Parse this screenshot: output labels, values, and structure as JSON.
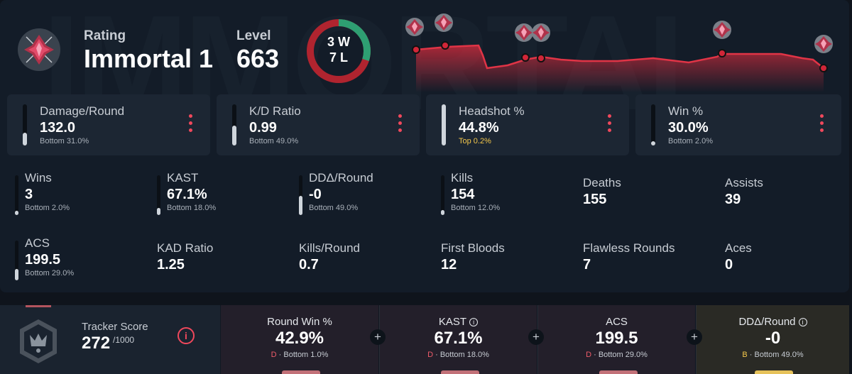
{
  "watermark": "IMMORTAL",
  "header": {
    "rating_label": "Rating",
    "rating_value": "Immortal 1",
    "level_label": "Level",
    "level_value": "663",
    "wins_text": "3 W",
    "losses_text": "7 L",
    "wins": 3,
    "losses": 7
  },
  "colors": {
    "accent_red": "#f0485c",
    "win_green": "#2e9f72",
    "loss_red": "#b0242f",
    "panel": "#131c28",
    "card": "#1c2633",
    "top_gold": "#f5c84b"
  },
  "top_cards": [
    {
      "label": "Damage/Round",
      "value": "132.0",
      "rank": "Bottom 31.0%",
      "percentile": 0.31,
      "is_top": false
    },
    {
      "label": "K/D Ratio",
      "value": "0.99",
      "rank": "Bottom 49.0%",
      "percentile": 0.49,
      "is_top": false
    },
    {
      "label": "Headshot %",
      "value": "44.8%",
      "rank": "Top 0.2%",
      "percentile": 0.998,
      "is_top": true
    },
    {
      "label": "Win %",
      "value": "30.0%",
      "rank": "Bottom 2.0%",
      "percentile": 0.02,
      "is_top": false
    }
  ],
  "stats_row1": [
    {
      "label": "Wins",
      "value": "3",
      "rank": "Bottom 2.0%",
      "percentile": 0.02
    },
    {
      "label": "KAST",
      "value": "67.1%",
      "rank": "Bottom 18.0%",
      "percentile": 0.18
    },
    {
      "label": "DDΔ/Round",
      "value": "-0",
      "rank": "Bottom 49.0%",
      "percentile": 0.49
    },
    {
      "label": "Kills",
      "value": "154",
      "rank": "Bottom 12.0%",
      "percentile": 0.12
    },
    {
      "label": "Deaths",
      "value": "155"
    },
    {
      "label": "Assists",
      "value": "39"
    }
  ],
  "stats_row2": [
    {
      "label": "ACS",
      "value": "199.5",
      "rank": "Bottom 29.0%",
      "percentile": 0.29
    },
    {
      "label": "KAD Ratio",
      "value": "1.25"
    },
    {
      "label": "Kills/Round",
      "value": "0.7"
    },
    {
      "label": "First Bloods",
      "value": "12"
    },
    {
      "label": "Flawless Rounds",
      "value": "7"
    },
    {
      "label": "Aces",
      "value": "0"
    }
  ],
  "tracker": {
    "label": "Tracker Score",
    "value": "272",
    "max": "/1000",
    "info_icon": "i"
  },
  "tracker_subs": [
    {
      "label": "Round Win %",
      "has_info": false,
      "value": "42.9%",
      "grade": "D",
      "rank": "Bottom 1.0%",
      "tab_color": "#c27178"
    },
    {
      "label": "KAST",
      "has_info": true,
      "value": "67.1%",
      "grade": "D",
      "rank": "Bottom 18.0%",
      "tab_color": "#c27178"
    },
    {
      "label": "ACS",
      "has_info": false,
      "value": "199.5",
      "grade": "D",
      "rank": "Bottom 29.0%",
      "tab_color": "#c27178"
    },
    {
      "label": "DDΔ/Round",
      "has_info": true,
      "value": "-0",
      "grade": "B",
      "rank": "Bottom 49.0%",
      "tab_color": "#e6c25a"
    }
  ],
  "icons": {
    "rank": "immortal-rank-icon",
    "kebab": "kebab-menu-icon",
    "info": "info-icon",
    "plus": "plus-icon",
    "tracker_badge": "tracker-badge-icon"
  }
}
